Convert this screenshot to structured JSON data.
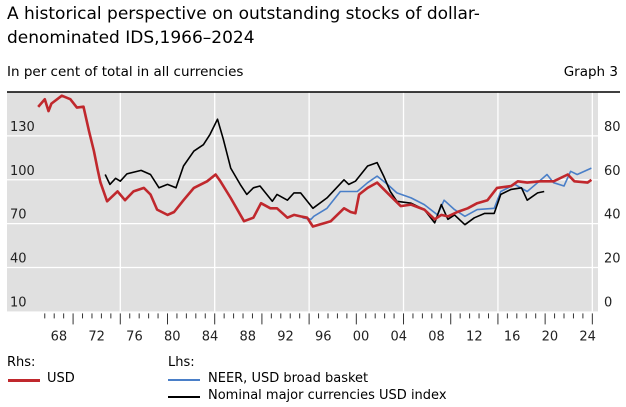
{
  "title": "A historical perspective on outstanding stocks of dollar-denominated IDS,1966–2024",
  "subtitle": "In per cent of total in all currencies",
  "graph_label": "Graph 3",
  "chart_data": {
    "type": "line",
    "title": "A historical perspective on outstanding stocks of dollar-denominated IDS,1966–2024",
    "ylabel_left": "Lhs",
    "ylabel_right": "Rhs",
    "left_axis": {
      "range": [
        10,
        160
      ],
      "ticks": [
        10,
        40,
        70,
        100,
        130
      ],
      "tick_labels": [
        "10",
        "40",
        "70",
        "100",
        "130"
      ]
    },
    "right_axis": {
      "range": [
        0,
        100
      ],
      "ticks": [
        0,
        20,
        40,
        60,
        80
      ],
      "tick_labels": [
        "0",
        "20",
        "40",
        "60",
        "80"
      ]
    },
    "x_axis": {
      "range": [
        1963,
        2025.6
      ],
      "tick_labels": [
        "68",
        "72",
        "76",
        "80",
        "84",
        "88",
        "92",
        "96",
        "00",
        "04",
        "08",
        "12",
        "16",
        "20",
        "24"
      ],
      "tick_years": [
        1968,
        1972,
        1976,
        1980,
        1984,
        1988,
        1992,
        1996,
        2000,
        2004,
        2008,
        2012,
        2016,
        2020,
        2024
      ],
      "gridline_years": [
        1975,
        1985,
        1995,
        2005,
        2015,
        2025
      ]
    },
    "grid": true,
    "legend": {
      "rhs_header": "Rhs:",
      "lhs_header": "Lhs:",
      "placement": "bottom"
    },
    "series": [
      {
        "name": "USD",
        "axis": "right",
        "color": "#c0282d",
        "x": [
          1966.3,
          1967.0,
          1967.4,
          1967.7,
          1968.8,
          1969.7,
          1970.4,
          1971.1,
          1971.7,
          1972.2,
          1972.6,
          1972.9,
          1973.6,
          1974.7,
          1975.5,
          1976.4,
          1977.5,
          1978.2,
          1978.9,
          1980.0,
          1980.7,
          1981.7,
          1982.8,
          1984.2,
          1985.1,
          1985.6,
          1986.7,
          1988.1,
          1989.1,
          1989.9,
          1990.9,
          1991.6,
          1992.7,
          1993.4,
          1994.1,
          1994.8,
          1995.4,
          1997.3,
          1998.7,
          1999.4,
          1999.9,
          2000.3,
          2001.2,
          2002.2,
          2003.6,
          2004.7,
          2005.8,
          2007.2,
          2008.3,
          2009.0,
          2009.7,
          2010.7,
          2011.8,
          2012.8,
          2013.9,
          2014.9,
          2016.4,
          2017.1,
          2018.1,
          2019.5,
          2020.9,
          2022.4,
          2023.1,
          2024.5,
          2024.9
        ],
        "y": [
          93.2,
          96.7,
          91.3,
          94.7,
          98.3,
          96.7,
          92.9,
          93.3,
          82,
          73.1,
          64.7,
          58.7,
          50.2,
          54.7,
          50.7,
          54.7,
          56.3,
          53.3,
          46.4,
          44,
          45.3,
          50.7,
          56.3,
          59.3,
          62.4,
          59.3,
          51.7,
          41.1,
          42.7,
          49.3,
          47,
          47,
          42.7,
          44,
          43.3,
          42.7,
          38.7,
          41.1,
          47,
          45.3,
          44.7,
          53.3,
          56.3,
          58.7,
          52.7,
          48,
          48.7,
          46.4,
          42,
          44,
          43.3,
          45.3,
          47,
          49.3,
          50.7,
          56.3,
          57.1,
          59.3,
          58.7,
          59.3,
          59.3,
          62.4,
          59.3,
          58.7,
          60
        ]
      },
      {
        "name": "NEER, USD broad basket",
        "axis": "left",
        "color": "#4a7fc8",
        "x": [
          1994.3,
          1995.2,
          1995.5,
          1996.9,
          1998.3,
          2000.1,
          2001.2,
          2002.2,
          2003.3,
          2004.3,
          2005.8,
          2007.2,
          2008.6,
          2009.3,
          2010.4,
          2011.5,
          2012.8,
          2014.6,
          2015.3,
          2016.8,
          2018.1,
          2019.2,
          2020.2,
          2020.9,
          2022.0,
          2022.7,
          2023.4,
          2024.9
        ],
        "y": [
          74,
          73,
          75,
          80.5,
          92,
          92,
          98,
          102.5,
          96.8,
          91,
          87.6,
          83,
          76,
          86,
          79.6,
          75,
          79.6,
          80.5,
          92,
          96.8,
          92,
          98,
          103.6,
          98,
          95.7,
          105.8,
          103.6,
          108
        ]
      },
      {
        "name": "Nominal major currencies USD index",
        "axis": "left",
        "color": "#000000",
        "x": [
          1973.4,
          1973.9,
          1974.5,
          1975.0,
          1975.7,
          1977.2,
          1978.2,
          1979.1,
          1980.0,
          1980.9,
          1981.7,
          1982.8,
          1983.8,
          1984.5,
          1985.3,
          1985.9,
          1986.7,
          1987.7,
          1988.4,
          1989.1,
          1989.8,
          1991.1,
          1991.6,
          1992.7,
          1993.4,
          1994.1,
          1995.4,
          1996.9,
          1998.7,
          1999.2,
          1999.9,
          2001.2,
          2002.2,
          2002.9,
          2003.6,
          2004.3,
          2005.8,
          2007.2,
          2008.3,
          2009.0,
          2009.7,
          2010.4,
          2011.5,
          2012.5,
          2013.6,
          2014.6,
          2015.3,
          2016.4,
          2017.5,
          2018.1,
          2019.2,
          2019.9
        ],
        "y": [
          103.6,
          96.8,
          101,
          99,
          104,
          106.4,
          103.6,
          94.5,
          96.8,
          94.5,
          109.4,
          119.6,
          124,
          131,
          141.4,
          128,
          108,
          96.8,
          90,
          94.5,
          95.7,
          85.3,
          90,
          86,
          91,
          91,
          80.5,
          87.6,
          100,
          96.8,
          99,
          109.4,
          111.7,
          102.5,
          92,
          85.3,
          84,
          79.6,
          70.5,
          83,
          73,
          76,
          69.3,
          74,
          77,
          77,
          90,
          93.4,
          94.5,
          86,
          91,
          92
        ]
      }
    ]
  }
}
